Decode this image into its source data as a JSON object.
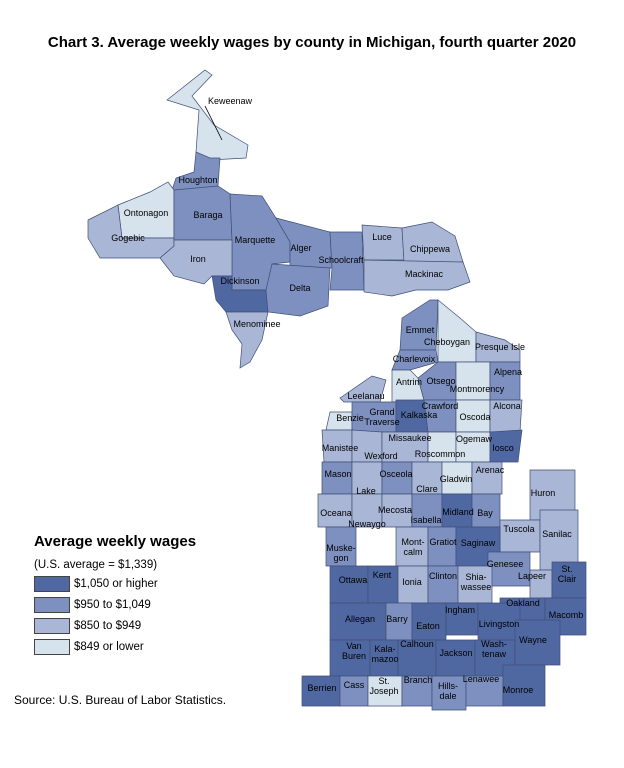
{
  "title": "Chart 3. Average weekly wages by county in Michigan, fourth quarter 2020",
  "legend": {
    "title": "Average weekly wages",
    "subtitle": "(U.S. average = $1,339)",
    "classes": [
      {
        "label": "$1,050 or higher",
        "color": "#5068a2"
      },
      {
        "label": "$950 to $1,049",
        "color": "#7e90bf"
      },
      {
        "label": "$850 to $949",
        "color": "#a9b6d6"
      },
      {
        "label": "$849 or lower",
        "color": "#d6e3ec"
      }
    ]
  },
  "source": "Source: U.S. Bureau of Labor Statistics.",
  "counties": [
    {
      "name": "Keweenaw",
      "cls": 3
    },
    {
      "name": "Houghton",
      "cls": 1
    },
    {
      "name": "Ontonagon",
      "cls": 3
    },
    {
      "name": "Gogebic",
      "cls": 2
    },
    {
      "name": "Baraga",
      "cls": 1
    },
    {
      "name": "Marquette",
      "cls": 1
    },
    {
      "name": "Alger",
      "cls": 1
    },
    {
      "name": "Luce",
      "cls": 2
    },
    {
      "name": "Chippewa",
      "cls": 2
    },
    {
      "name": "Iron",
      "cls": 2
    },
    {
      "name": "Schoolcraft",
      "cls": 1
    },
    {
      "name": "Mackinac",
      "cls": 2
    },
    {
      "name": "Dickinson",
      "cls": 0
    },
    {
      "name": "Delta",
      "cls": 1
    },
    {
      "name": "Menominee",
      "cls": 2
    },
    {
      "name": "Emmet",
      "cls": 1
    },
    {
      "name": "Cheboygan",
      "cls": 3
    },
    {
      "name": "Presque Isle",
      "cls": 2
    },
    {
      "name": "Charlevoix",
      "cls": 1
    },
    {
      "name": "Antrim",
      "cls": 3
    },
    {
      "name": "Otsego",
      "cls": 1
    },
    {
      "name": "Montmorency",
      "cls": 3
    },
    {
      "name": "Alpena",
      "cls": 1
    },
    {
      "name": "Leelanau",
      "cls": 2
    },
    {
      "name": "Benzie",
      "cls": 3
    },
    {
      "name": "Grand Traverse",
      "cls": 1
    },
    {
      "name": "Kalkaska",
      "cls": 0
    },
    {
      "name": "Crawford",
      "cls": 1
    },
    {
      "name": "Oscoda",
      "cls": 3
    },
    {
      "name": "Alcona",
      "cls": 2
    },
    {
      "name": "Manistee",
      "cls": 2
    },
    {
      "name": "Wexford",
      "cls": 2
    },
    {
      "name": "Missaukee",
      "cls": 2
    },
    {
      "name": "Roscommon",
      "cls": 3
    },
    {
      "name": "Ogemaw",
      "cls": 3
    },
    {
      "name": "Iosco",
      "cls": 0
    },
    {
      "name": "Mason",
      "cls": 1
    },
    {
      "name": "Lake",
      "cls": 2
    },
    {
      "name": "Osceola",
      "cls": 1
    },
    {
      "name": "Clare",
      "cls": 2
    },
    {
      "name": "Gladwin",
      "cls": 3
    },
    {
      "name": "Arenac",
      "cls": 2
    },
    {
      "name": "Huron",
      "cls": 2
    },
    {
      "name": "Oceana",
      "cls": 2
    },
    {
      "name": "Newaygo",
      "cls": 2
    },
    {
      "name": "Mecosta",
      "cls": 2
    },
    {
      "name": "Isabella",
      "cls": 1
    },
    {
      "name": "Midland",
      "cls": 0
    },
    {
      "name": "Bay",
      "cls": 1
    },
    {
      "name": "Tuscola",
      "cls": 2
    },
    {
      "name": "Sanilac",
      "cls": 2
    },
    {
      "name": "Muske-gon",
      "cls": 1
    },
    {
      "name": "Mont-calm",
      "cls": 2
    },
    {
      "name": "Gratiot",
      "cls": 1
    },
    {
      "name": "Saginaw",
      "cls": 0
    },
    {
      "name": "Genesee",
      "cls": 1
    },
    {
      "name": "Lapeer",
      "cls": 2
    },
    {
      "name": "St. Clair",
      "cls": 0
    },
    {
      "name": "Ottawa",
      "cls": 0
    },
    {
      "name": "Kent",
      "cls": 0
    },
    {
      "name": "Ionia",
      "cls": 2
    },
    {
      "name": "Clinton",
      "cls": 1
    },
    {
      "name": "Shia-wassee",
      "cls": 2
    },
    {
      "name": "Oakland",
      "cls": 0
    },
    {
      "name": "Macomb",
      "cls": 0
    },
    {
      "name": "Allegan",
      "cls": 0
    },
    {
      "name": "Barry",
      "cls": 1
    },
    {
      "name": "Eaton",
      "cls": 0
    },
    {
      "name": "Ingham",
      "cls": 0
    },
    {
      "name": "Livingston",
      "cls": 0
    },
    {
      "name": "Van Buren",
      "cls": 0
    },
    {
      "name": "Kala-mazoo",
      "cls": 0
    },
    {
      "name": "Calhoun",
      "cls": 0
    },
    {
      "name": "Jackson",
      "cls": 0
    },
    {
      "name": "Wash-tenaw",
      "cls": 0
    },
    {
      "name": "Wayne",
      "cls": 0
    },
    {
      "name": "Berrien",
      "cls": 0
    },
    {
      "name": "Cass",
      "cls": 1
    },
    {
      "name": "St. Joseph",
      "cls": 3
    },
    {
      "name": "Branch",
      "cls": 1
    },
    {
      "name": "Hills-dale",
      "cls": 1
    },
    {
      "name": "Lenawee",
      "cls": 1
    },
    {
      "name": "Monroe",
      "cls": 0
    }
  ]
}
